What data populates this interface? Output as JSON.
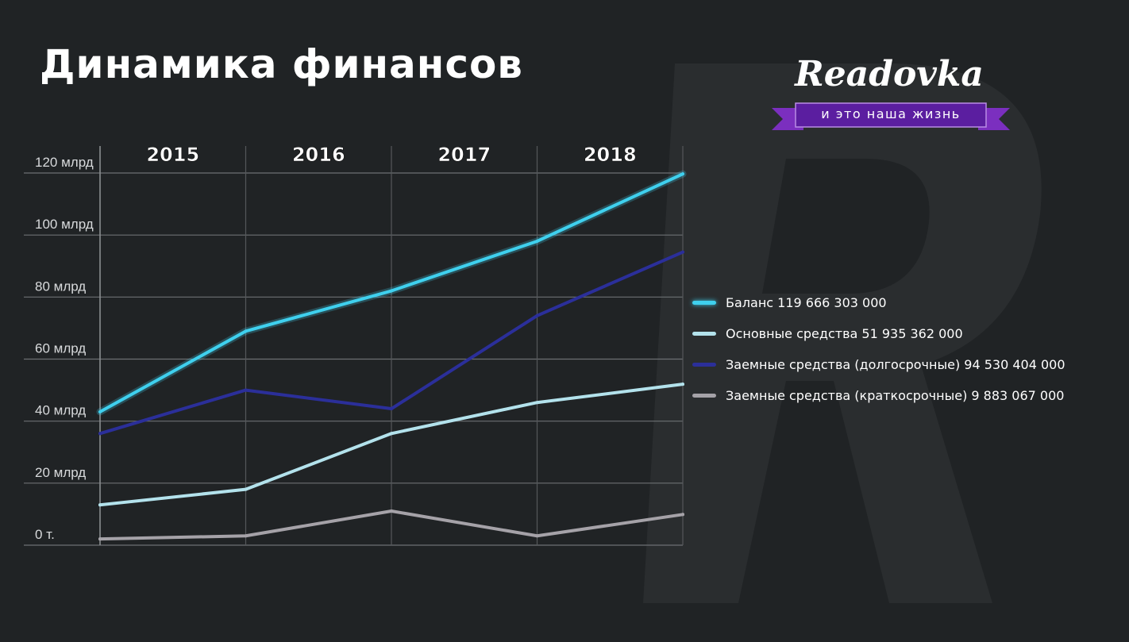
{
  "title": "Динамика финансов",
  "logo": {
    "name": "Readovka",
    "tagline": "и это наша жизнь",
    "ribbon_color": "#5b1ea0"
  },
  "chart_data": {
    "type": "line",
    "categories": [
      "2015",
      "2016",
      "2017",
      "2018"
    ],
    "x": [
      2014.5,
      2015.5,
      2016.5,
      2017.5,
      2018.5
    ],
    "y_ticks": [
      {
        "value": 120,
        "label": "120 млрд"
      },
      {
        "value": 100,
        "label": "100 млрд"
      },
      {
        "value": 80,
        "label": "80 млрд"
      },
      {
        "value": 60,
        "label": "60 млрд"
      },
      {
        "value": 40,
        "label": "40 млрд"
      },
      {
        "value": 20,
        "label": "20 млрд"
      },
      {
        "value": 0,
        "label": "0 т."
      }
    ],
    "ylim": [
      0,
      120
    ],
    "xlim": [
      2014.5,
      2018.5
    ],
    "grid": true,
    "legend_position": "right",
    "series": [
      {
        "name": "Баланс 119 666 303 000",
        "color": "#3fd0ee",
        "values": [
          43,
          69,
          82,
          98,
          119.7
        ]
      },
      {
        "name": "Основные средства 51 935 362 000",
        "color": "#b3e2ec",
        "values": [
          13,
          18,
          36,
          46,
          51.9
        ]
      },
      {
        "name": "Заемные средства (долгосрочные) 94 530 404 000",
        "color": "#2b2f9a",
        "values": [
          36,
          50,
          44,
          74,
          94.5
        ]
      },
      {
        "name": "Заемные средства (краткосрочные) 9 883 067 000",
        "color": "#a5a2a8",
        "values": [
          2,
          3,
          11,
          3,
          9.9
        ]
      }
    ]
  }
}
